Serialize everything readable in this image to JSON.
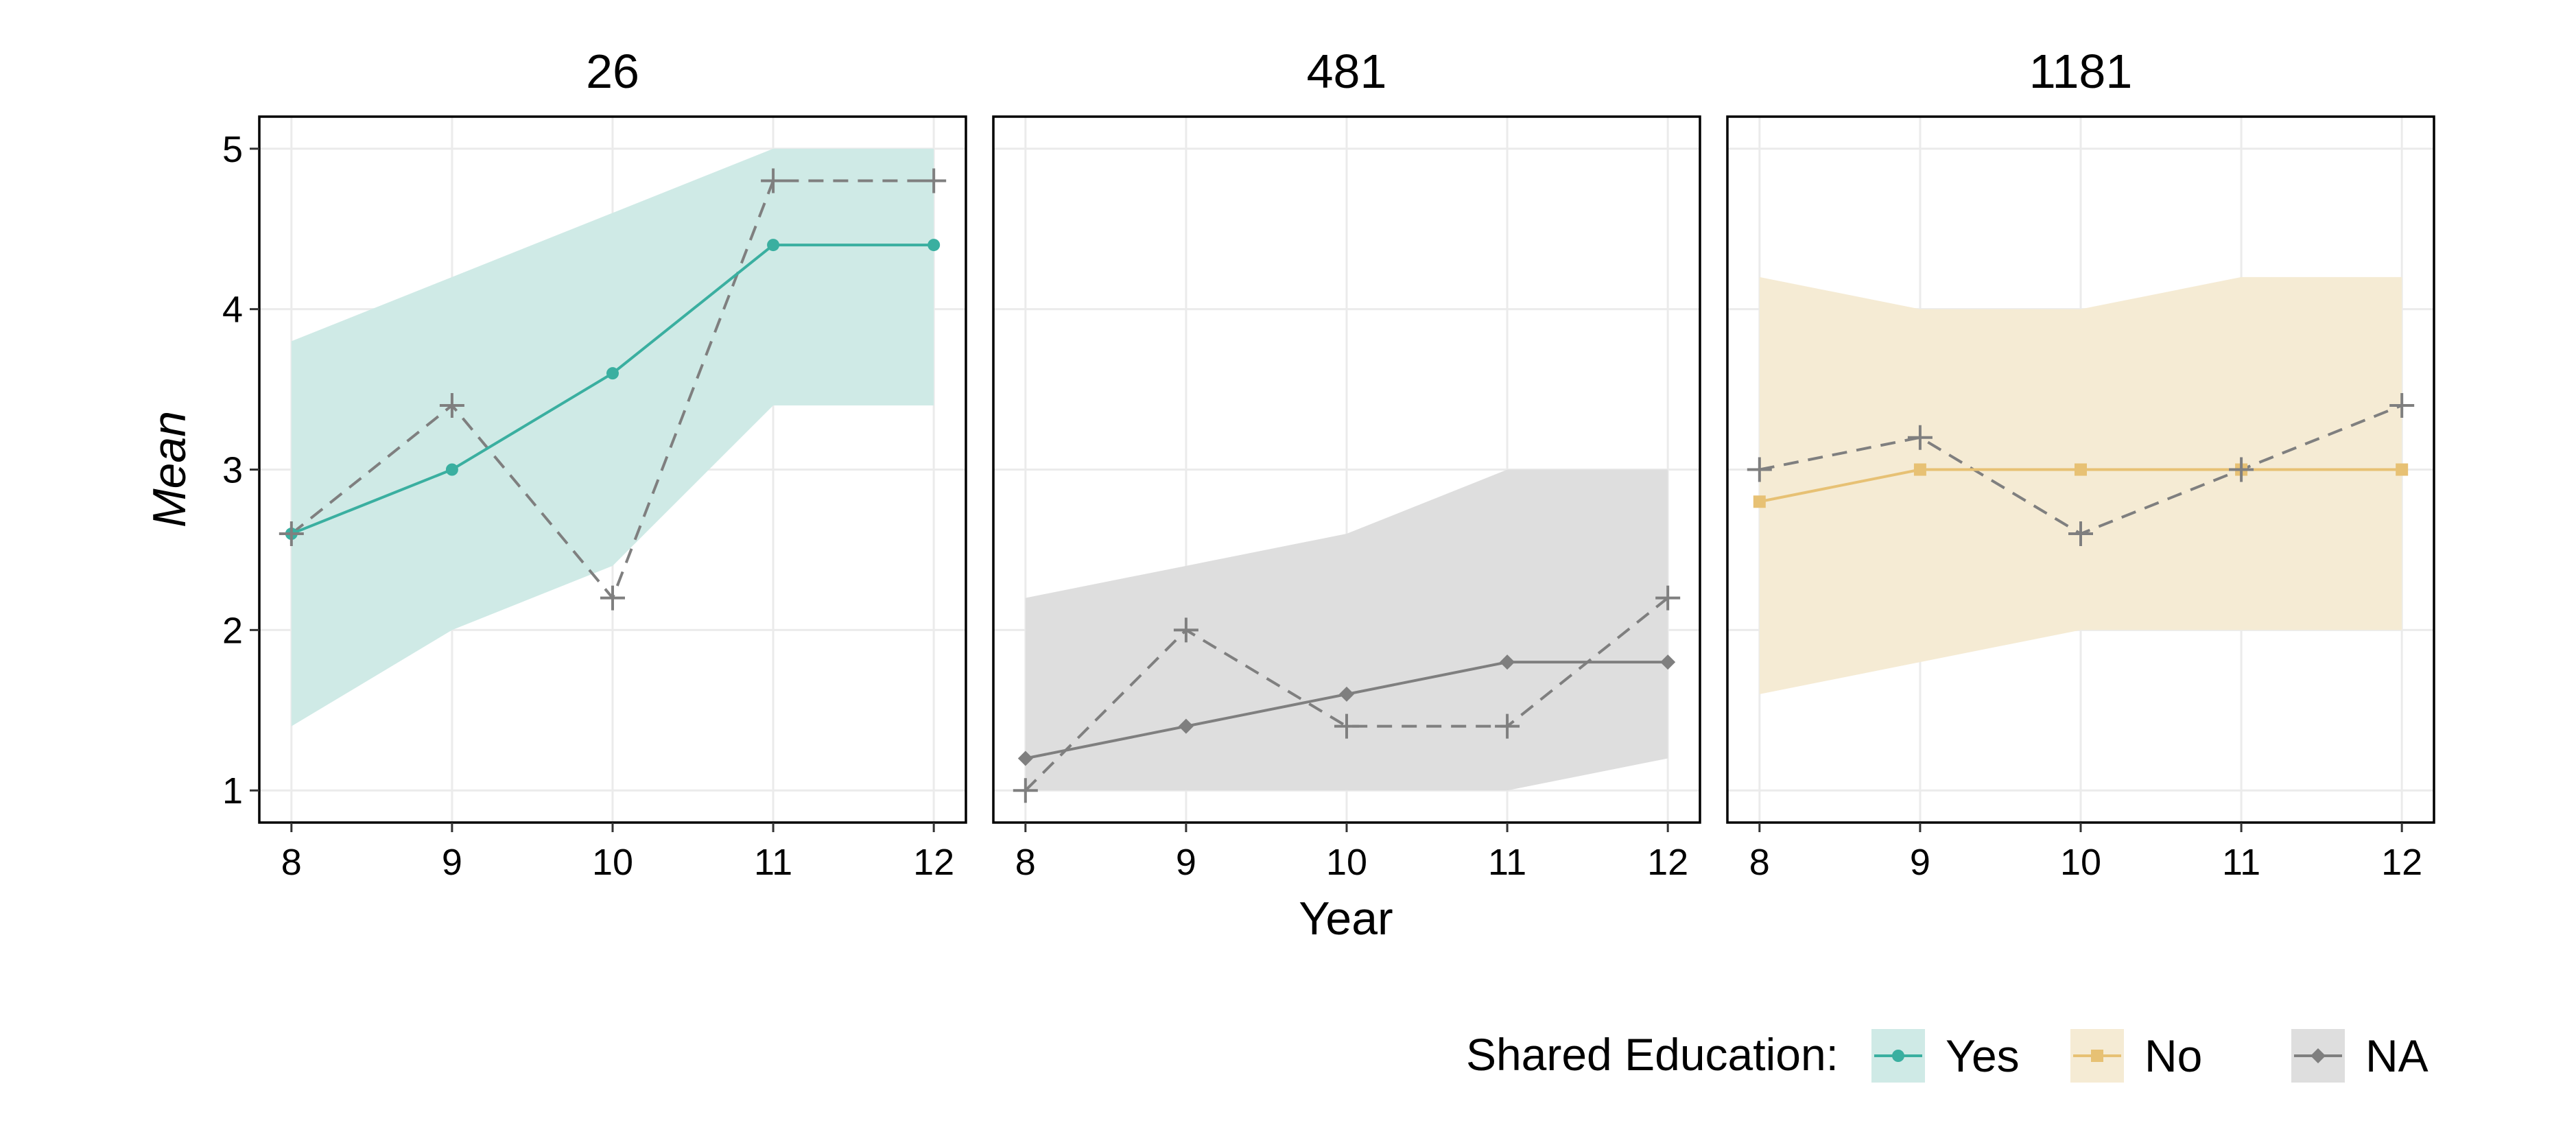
{
  "chart_data": {
    "type": "line",
    "facets": [
      "26",
      "481",
      "1181"
    ],
    "x": [
      8,
      9,
      10,
      11,
      12
    ],
    "xticks": [
      "8",
      "9",
      "10",
      "11",
      "12"
    ],
    "yticks": [
      "1",
      "2",
      "3",
      "4",
      "5"
    ],
    "xlabel": "Year",
    "ylabel": "Mean",
    "xlim": [
      7.8,
      12.2
    ],
    "ylim": [
      0.8,
      5.2
    ],
    "grid": true,
    "legend": {
      "title": "Shared Education:",
      "position": "bottom-right",
      "entries": [
        {
          "label": "Yes",
          "color": "#3aafa0",
          "fill": "#cfeae6",
          "marker": "circle"
        },
        {
          "label": "No",
          "color": "#e7c174",
          "fill": "#f5ebd4",
          "marker": "square"
        },
        {
          "label": "NA",
          "color": "#7f7f7f",
          "fill": "#dedede",
          "marker": "diamond"
        }
      ]
    },
    "panels": [
      {
        "facet": "26",
        "group": "Yes",
        "line_color": "#3aafa0",
        "band_color": "#cfeae6",
        "marker": "circle",
        "mean": [
          2.6,
          3.0,
          3.6,
          4.4,
          4.4
        ],
        "band_low": [
          1.4,
          2.0,
          2.4,
          3.4,
          3.4
        ],
        "band_high": [
          3.8,
          4.2,
          4.6,
          5.0,
          5.0
        ],
        "individual": [
          2.6,
          3.4,
          2.2,
          4.8,
          4.8
        ]
      },
      {
        "facet": "481",
        "group": "NA",
        "line_color": "#7f7f7f",
        "band_color": "#dedede",
        "marker": "diamond",
        "mean": [
          1.2,
          1.4,
          1.6,
          1.8,
          1.8
        ],
        "band_low": [
          1.0,
          1.0,
          1.0,
          1.0,
          1.2
        ],
        "band_high": [
          2.2,
          2.4,
          2.6,
          3.0,
          3.0
        ],
        "individual": [
          1.0,
          2.0,
          1.4,
          1.4,
          2.2
        ]
      },
      {
        "facet": "1181",
        "group": "No",
        "line_color": "#e7c174",
        "band_color": "#f5ebd4",
        "marker": "square",
        "mean": [
          2.8,
          3.0,
          3.0,
          3.0,
          3.0
        ],
        "band_low": [
          1.6,
          1.8,
          2.0,
          2.0,
          2.0
        ],
        "band_high": [
          4.2,
          4.0,
          4.0,
          4.2,
          4.2
        ],
        "individual": [
          3.0,
          3.2,
          2.6,
          3.0,
          3.4
        ]
      }
    ],
    "individual_style": {
      "color": "#7f7f7f",
      "dash": "dashed",
      "marker": "plus"
    }
  }
}
